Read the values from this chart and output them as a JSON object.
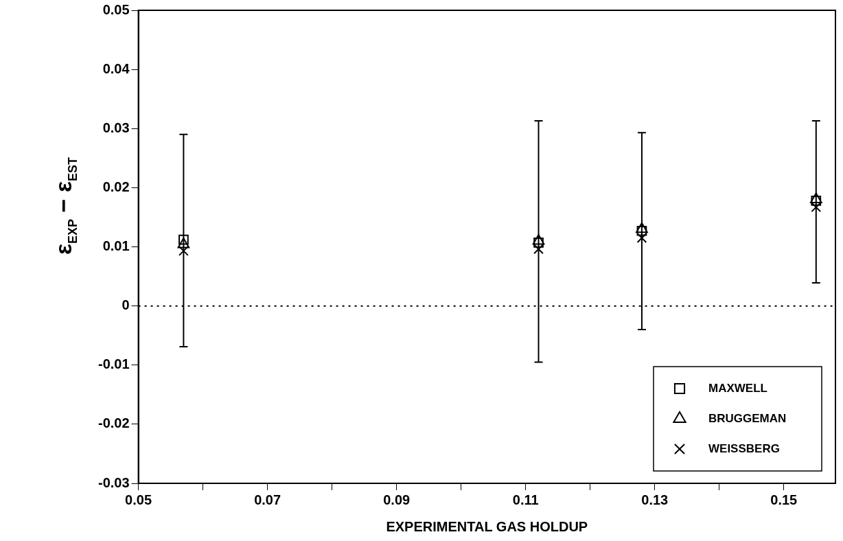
{
  "chart_data": {
    "type": "scatter",
    "xlabel": "EXPERIMENTAL GAS HOLDUP",
    "ylabel": "ε$_{EXP}$ − ε$_{EST}$",
    "x": [
      0.057,
      0.112,
      0.128,
      0.155
    ],
    "series": [
      {
        "name": "MAXWELL",
        "color": "#000000",
        "marker": "square",
        "values": [
          0.0112,
          0.0107,
          0.0127,
          0.0178
        ],
        "errors": [
          [
            -0.0069,
            0.029
          ],
          [
            -0.0095,
            0.0313
          ],
          [
            -0.004,
            0.0293
          ],
          [
            0.0039,
            0.0313
          ]
        ]
      },
      {
        "name": "BRUGGEMAN",
        "color": "#000000",
        "marker": "triangle",
        "values": [
          0.0104,
          0.011,
          0.013,
          0.018
        ]
      },
      {
        "name": "WEISSBERG",
        "color": "#000000",
        "marker": "cross",
        "values": [
          0.0093,
          0.0096,
          0.0115,
          0.0167
        ]
      }
    ],
    "xlim": [
      0.05,
      0.158
    ],
    "xticks": [
      0.05,
      {
        "value": 0.06,
        "label": null
      },
      0.07,
      {
        "value": 0.08,
        "label": null
      },
      0.09,
      {
        "value": 0.1,
        "label": null
      },
      0.11,
      {
        "value": 0.12,
        "label": null
      },
      0.13,
      {
        "value": 0.14,
        "label": null
      },
      0.15
    ],
    "ylim": [
      -0.03,
      0.05
    ],
    "yticks": [
      -0.03,
      -0.02,
      -0.01,
      0,
      0.01,
      0.02,
      0.03,
      0.04,
      0.05
    ],
    "ref_lines": [
      {
        "axis": "y",
        "value": 0,
        "line_style": "dotted"
      }
    ],
    "grid": false,
    "legend": "bottom right"
  }
}
